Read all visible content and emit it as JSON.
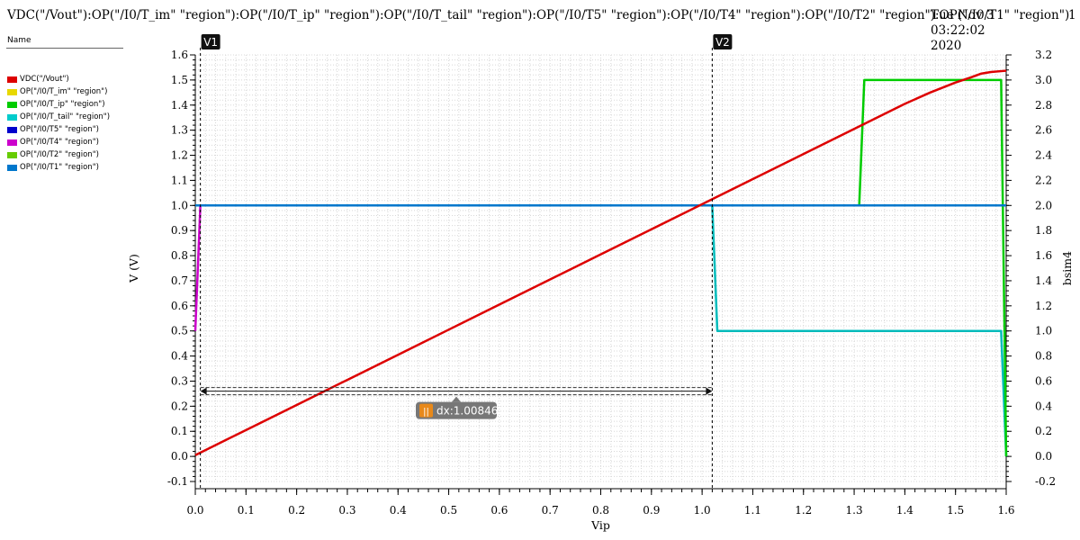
{
  "header": {
    "title": "VDC(\"/Vout\"):OP(\"/I0/T_im\" \"region\"):OP(\"/I0/T_ip\" \"region\"):OP(\"/I0/T_tail\" \"region\"):OP(\"/I0/T5\" \"region\"):OP(\"/I0/T4\" \"region\"):OP(\"/I0/T2\" \"region\"):OP(\"/I0/T1\" \"region\")",
    "date_line1": "Tue Nov 3 03:22:02",
    "date_line2": "2020",
    "page": "1"
  },
  "legend": {
    "heading": "Name",
    "items": [
      {
        "label": "VDC(\"/Vout\")",
        "color": "#dd0000"
      },
      {
        "label": "OP(\"/I0/T_im\" \"region\")",
        "color": "#e8d800"
      },
      {
        "label": "OP(\"/I0/T_ip\" \"region\")",
        "color": "#00cc00"
      },
      {
        "label": "OP(\"/I0/T_tail\" \"region\")",
        "color": "#00cccc"
      },
      {
        "label": "OP(\"/I0/T5\" \"region\")",
        "color": "#0000cc"
      },
      {
        "label": "OP(\"/I0/T4\" \"region\")",
        "color": "#cc00cc"
      },
      {
        "label": "OP(\"/I0/T2\" \"region\")",
        "color": "#66cc00"
      },
      {
        "label": "OP(\"/I0/T1\" \"region\")",
        "color": "#0077cc"
      }
    ]
  },
  "chart_data": {
    "type": "line",
    "xlabel": "Vip",
    "ylabel": "V (V)",
    "y2label": "bsim4",
    "xlim": [
      0.0,
      1.6
    ],
    "ylim": [
      -0.1,
      1.6
    ],
    "y2lim": [
      -0.2,
      3.2
    ],
    "x_ticks": [
      "0.0",
      "0.1",
      "0.2",
      "0.3",
      "0.4",
      "0.5",
      "0.6",
      "0.7",
      "0.8",
      "0.9",
      "1.0",
      "1.1",
      "1.2",
      "1.3",
      "1.4",
      "1.5",
      "1.6"
    ],
    "y_ticks": [
      "-0.1",
      "0.0",
      "0.1",
      "0.2",
      "0.3",
      "0.4",
      "0.5",
      "0.6",
      "0.7",
      "0.8",
      "0.9",
      "1.0",
      "1.1",
      "1.2",
      "1.3",
      "1.4",
      "1.5",
      "1.6"
    ],
    "y2_ticks": [
      "-0.2",
      "0.0",
      "0.2",
      "0.4",
      "0.6",
      "0.8",
      "1.0",
      "1.2",
      "1.4",
      "1.6",
      "1.8",
      "2.0",
      "2.2",
      "2.4",
      "2.6",
      "2.8",
      "3.0",
      "3.2"
    ],
    "grid": true,
    "markers": [
      {
        "label": "V1",
        "x": 0.01
      },
      {
        "label": "V2",
        "x": 1.02
      }
    ],
    "delta": {
      "label": "dx:1.00846",
      "x1": 0.01,
      "x2": 1.02,
      "y": 0.26
    },
    "series": [
      {
        "name": "OP(\"/I0/T4\" \"region\")",
        "axis": "right",
        "color": "#cc00cc",
        "x": [
          0.0,
          0.01,
          0.01,
          1.6
        ],
        "y": [
          1.0,
          2.0,
          2.0,
          2.0
        ]
      },
      {
        "name": "OP(\"/I0/T_tail\" \"region\")",
        "axis": "right",
        "color": "#00bbbb",
        "x": [
          0.0,
          1.02,
          1.03,
          1.59,
          1.6
        ],
        "y": [
          2.0,
          2.0,
          1.0,
          1.0,
          0.0
        ]
      },
      {
        "name": "OP(\"/I0/T_ip\" \"region\")",
        "axis": "right",
        "color": "#00cc00",
        "x": [
          0.0,
          1.31,
          1.32,
          1.59,
          1.6
        ],
        "y": [
          2.0,
          2.0,
          3.0,
          3.0,
          0.0
        ]
      },
      {
        "name": "OP(\"/I0/T1\" \"region\")",
        "axis": "right",
        "color": "#0077cc",
        "x": [
          0.0,
          1.6
        ],
        "y": [
          2.0,
          2.0
        ]
      },
      {
        "name": "VDC(\"/Vout\")",
        "axis": "left",
        "color": "#dd0000",
        "x": [
          0.0,
          0.1,
          0.2,
          0.3,
          0.4,
          0.5,
          0.6,
          0.7,
          0.8,
          0.9,
          1.0,
          1.1,
          1.2,
          1.3,
          1.4,
          1.45,
          1.5,
          1.53,
          1.55,
          1.57,
          1.6
        ],
        "y": [
          0.005,
          0.105,
          0.205,
          0.305,
          0.405,
          0.505,
          0.605,
          0.705,
          0.805,
          0.905,
          1.005,
          1.105,
          1.205,
          1.305,
          1.405,
          1.45,
          1.49,
          1.51,
          1.525,
          1.532,
          1.537
        ]
      }
    ]
  }
}
